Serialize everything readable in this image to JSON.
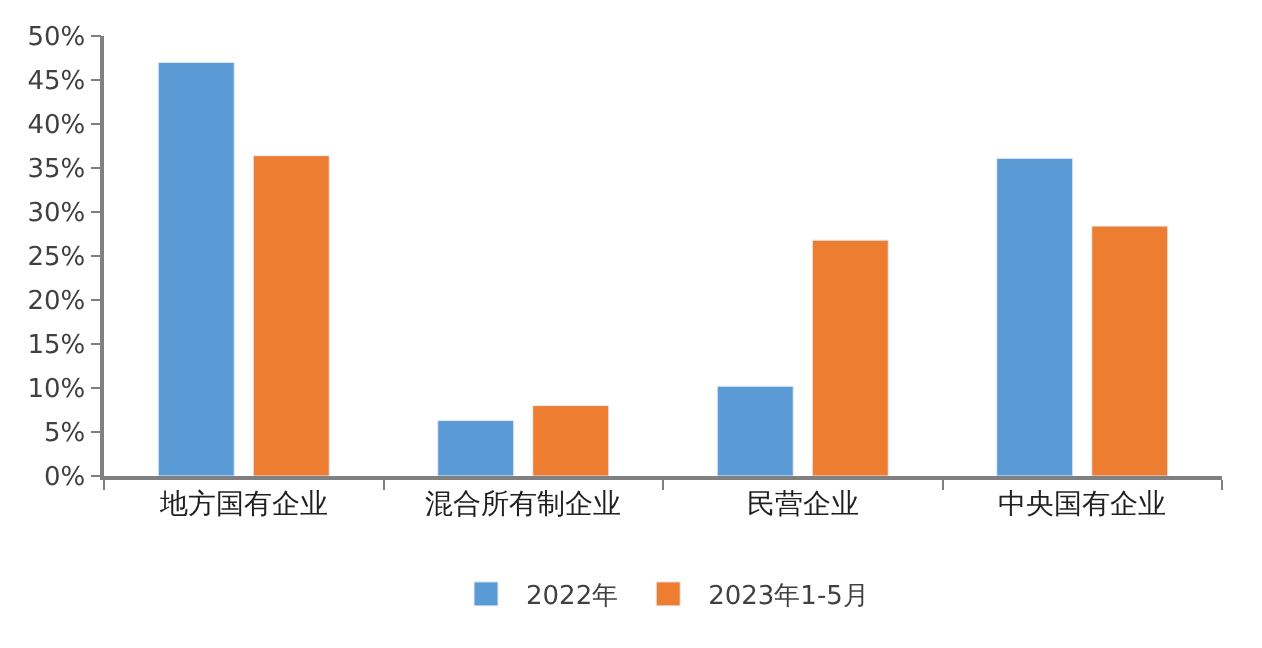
{
  "chart_data": {
    "type": "bar",
    "categories": [
      "地方国有企业",
      "混合所有制企业",
      "民营企业",
      "中央国有企业"
    ],
    "series": [
      {
        "name": "2022年",
        "color": "#5b9bd5",
        "values": [
          47.0,
          6.3,
          10.2,
          36.1
        ]
      },
      {
        "name": "2023年1-5月",
        "color": "#ed7d31",
        "values": [
          36.4,
          8.0,
          26.8,
          28.4
        ]
      }
    ],
    "ylim": [
      0,
      50
    ],
    "yticks": [
      {
        "value": 0,
        "label": "0%"
      },
      {
        "value": 5,
        "label": "5%"
      },
      {
        "value": 10,
        "label": "10%"
      },
      {
        "value": 15,
        "label": "15%"
      },
      {
        "value": 20,
        "label": "20%"
      },
      {
        "value": 25,
        "label": "25%"
      },
      {
        "value": 30,
        "label": "30%"
      },
      {
        "value": 35,
        "label": "35%"
      },
      {
        "value": 40,
        "label": "40%"
      },
      {
        "value": 45,
        "label": "45%"
      },
      {
        "value": 50,
        "label": "50%"
      }
    ],
    "legend": "bottom"
  }
}
